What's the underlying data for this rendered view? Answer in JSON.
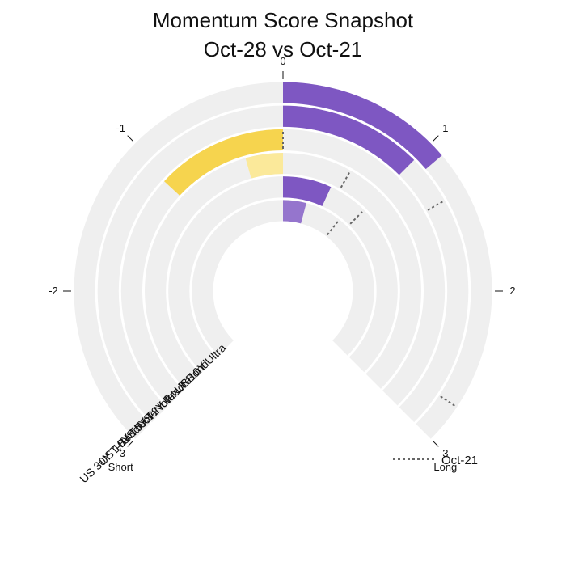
{
  "chart_data": {
    "type": "radial-bar",
    "title": [
      "Momentum Score Snapshot",
      "Oct-28 vs Oct-21"
    ],
    "axis": {
      "range": [
        -3,
        3
      ],
      "ticks": [
        -3,
        -2,
        -1,
        0,
        1,
        2,
        3
      ],
      "tick_labels": [
        "-3",
        "-2",
        "-1",
        "0",
        "1",
        "2",
        "3"
      ],
      "short_label": "Short",
      "long_label": "Long"
    },
    "categories": [
      "US 30Y T-Bond",
      "US 10Y T-Note",
      "US 5Y T-Note",
      "US 2Y T-Note",
      "Ultra T-Bond",
      "US 10Y Ultra"
    ],
    "current": {
      "name": "Oct-28",
      "values": [
        1.1,
        1.0,
        -1.05,
        -0.35,
        0.55,
        0.33
      ]
    },
    "previous": {
      "name": "Oct-21",
      "values": [
        2.75,
        1.35,
        0.0,
        0.65,
        1.0,
        0.85
      ]
    },
    "legend": {
      "label": "Oct-21",
      "position": "bottom-right"
    },
    "colors": {
      "track": "#efefef",
      "long_strong": "#7e57c2",
      "long_weak": "#9575cd",
      "short_strong": "#f6d44e",
      "short_weak": "#fbe99a",
      "marker": "#666666",
      "separator": "#ffffff"
    }
  }
}
